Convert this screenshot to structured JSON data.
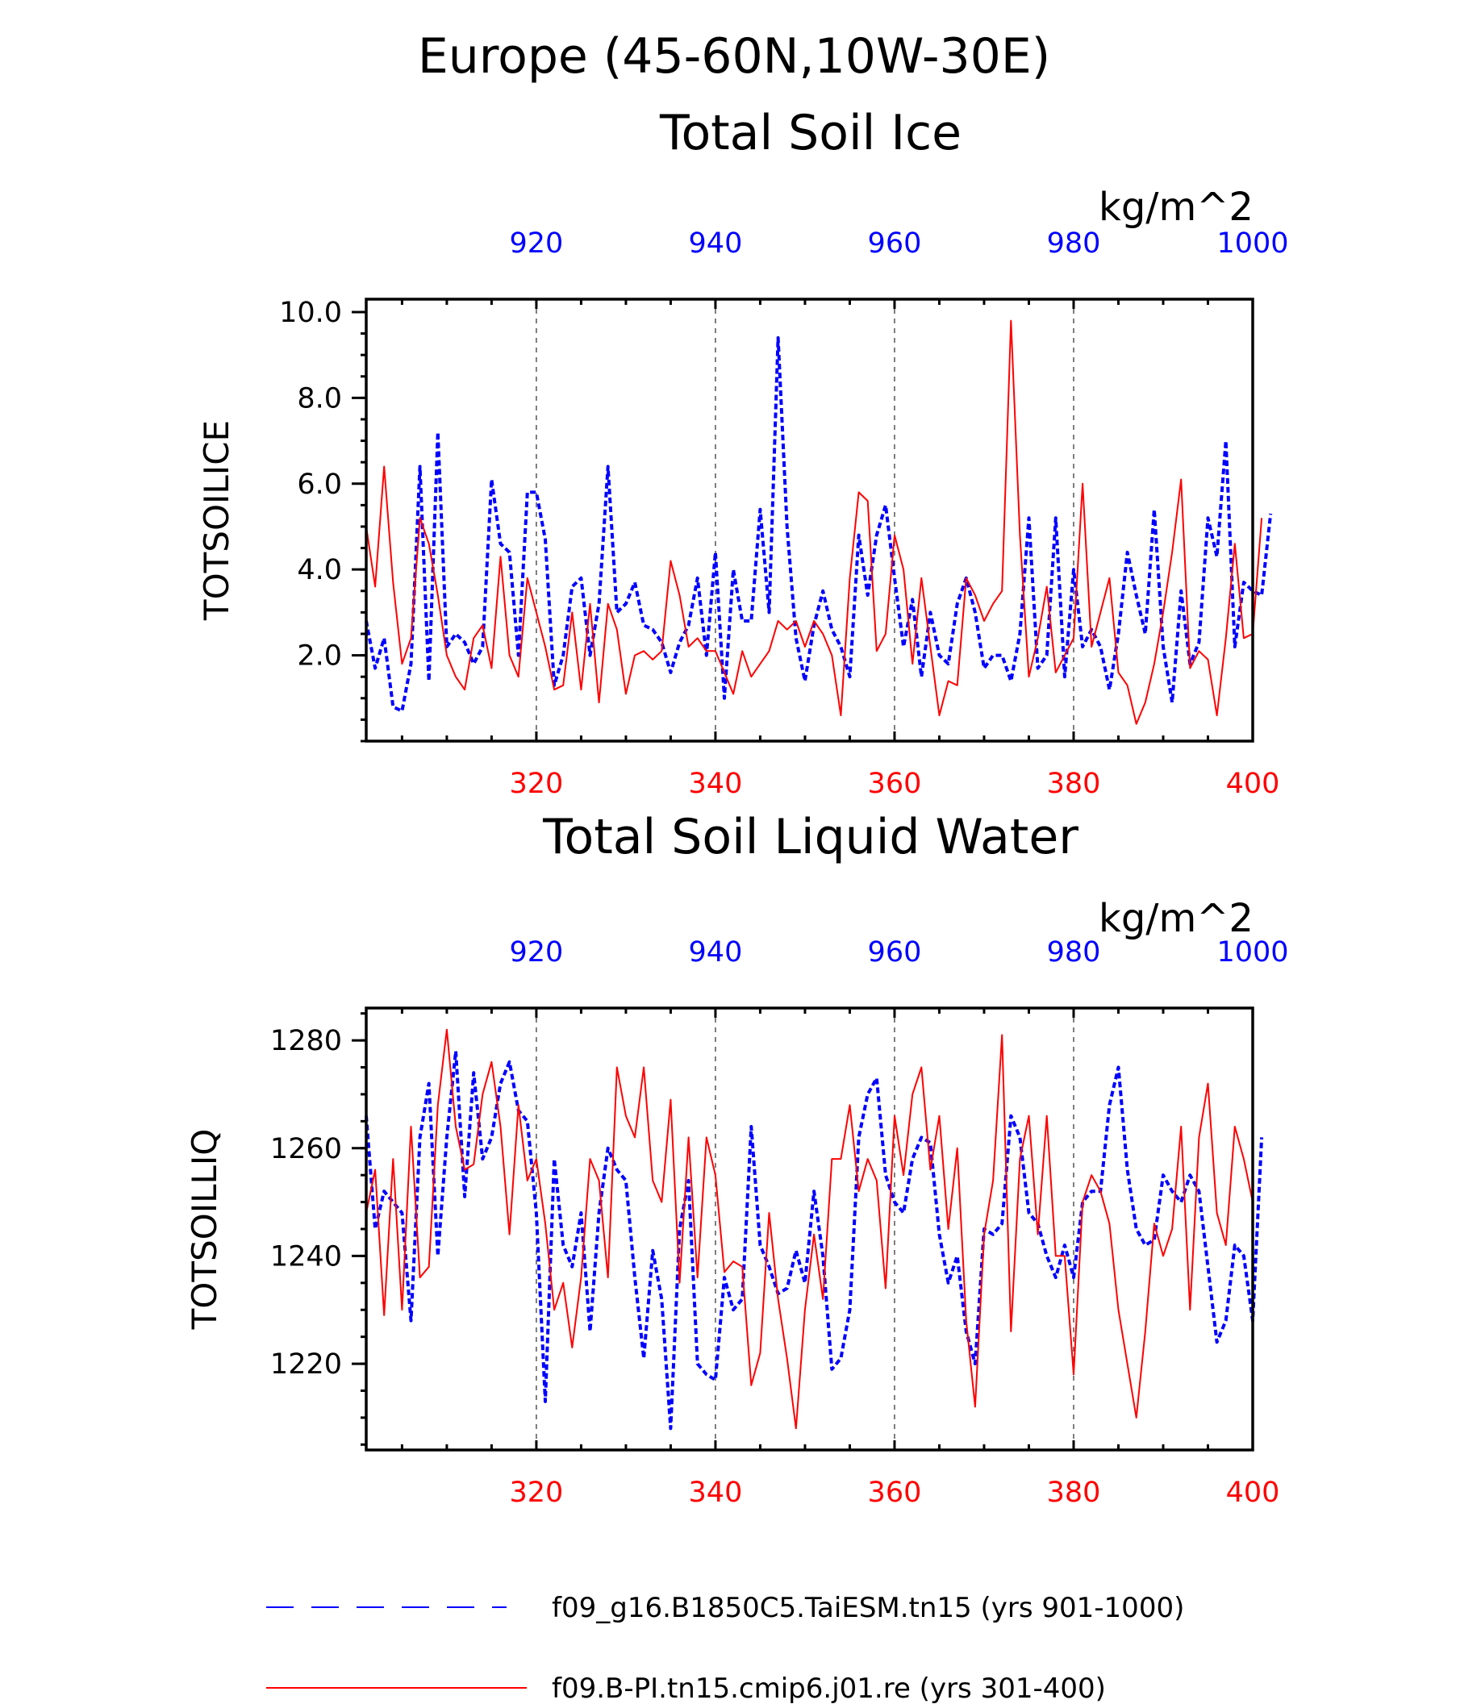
{
  "chart_data": [
    {
      "type": "line",
      "title": "Europe (45-60N,10W-30E)",
      "subtitle": "Total Soil Ice",
      "units": "kg/m^2",
      "ylabel": "TOTSOILICE",
      "ylim": [
        0,
        10.3
      ],
      "yticks": [
        "2.0",
        "4.0",
        "6.0",
        "8.0",
        "10.0"
      ],
      "x_bottom": {
        "range": [
          301,
          400
        ],
        "ticks": [
          "320",
          "340",
          "360",
          "380",
          "400"
        ],
        "color": "#ff0000"
      },
      "x_top": {
        "range": [
          901,
          1000
        ],
        "ticks": [
          "920",
          "940",
          "960",
          "980",
          "1000"
        ],
        "color": "#0000ff"
      },
      "grid": "vertical dashed at major ticks",
      "series": [
        {
          "name": "f09_g16.B1850C5.TaiESM.tn15 (yrs 901-1000)",
          "color": "#0000ff",
          "style": "dashed",
          "axis": "top",
          "values": [
            2.8,
            1.7,
            2.4,
            0.8,
            0.7,
            1.8,
            6.4,
            1.4,
            7.2,
            2.2,
            2.5,
            2.3,
            1.8,
            2.2,
            6.1,
            4.6,
            4.4,
            2.0,
            5.8,
            5.8,
            4.7,
            1.3,
            2.0,
            3.6,
            3.8,
            2.0,
            3.2,
            6.4,
            3.0,
            3.2,
            3.7,
            2.7,
            2.6,
            2.3,
            1.6,
            2.3,
            2.7,
            3.8,
            2.0,
            4.4,
            1.0,
            4.0,
            2.8,
            2.8,
            5.4,
            3.0,
            9.4,
            5.0,
            2.4,
            1.4,
            2.7,
            3.5,
            2.6,
            2.2,
            1.5,
            4.8,
            3.4,
            4.8,
            5.5,
            3.8,
            2.2,
            3.3,
            1.5,
            3.0,
            2.0,
            1.8,
            3.2,
            3.8,
            3.0,
            1.7,
            2.0,
            2.0,
            1.4,
            2.5,
            5.2,
            1.7,
            2.0,
            5.2,
            1.5,
            4.0,
            2.2,
            2.6,
            2.2,
            1.2,
            2.5,
            4.4,
            3.4,
            2.5,
            5.4,
            2.2,
            0.9,
            3.5,
            1.8,
            2.3,
            5.2,
            4.3,
            7.0,
            2.2,
            3.7,
            3.5,
            3.4,
            5.3
          ]
        },
        {
          "name": "f09.B-PI.tn15.cmip6.j01.re (yrs 301-400)",
          "color": "#ff0000",
          "style": "solid",
          "axis": "bottom",
          "values": [
            5.0,
            3.6,
            6.4,
            3.7,
            1.8,
            2.4,
            5.2,
            4.6,
            3.4,
            2.0,
            1.5,
            1.2,
            2.4,
            2.7,
            1.7,
            4.3,
            2.0,
            1.5,
            3.8,
            3.0,
            2.2,
            1.2,
            1.3,
            3.0,
            1.2,
            3.2,
            0.9,
            3.2,
            2.6,
            1.1,
            2.0,
            2.1,
            1.9,
            2.1,
            4.2,
            3.4,
            2.2,
            2.4,
            2.1,
            2.1,
            1.6,
            1.1,
            2.1,
            1.5,
            1.8,
            2.1,
            2.8,
            2.6,
            2.8,
            2.2,
            2.8,
            2.5,
            2.0,
            0.6,
            3.8,
            5.8,
            5.6,
            2.1,
            2.5,
            4.8,
            4.0,
            1.8,
            3.8,
            2.2,
            0.6,
            1.4,
            1.3,
            3.8,
            3.4,
            2.8,
            3.2,
            3.5,
            9.8,
            4.8,
            1.5,
            2.4,
            3.6,
            1.6,
            2.0,
            2.4,
            6.0,
            2.2,
            3.0,
            3.8,
            1.6,
            1.3,
            0.4,
            0.9,
            1.8,
            3.0,
            4.4,
            6.1,
            1.7,
            2.1,
            1.9,
            0.6,
            2.4,
            4.6,
            2.4,
            2.5,
            5.2
          ]
        }
      ]
    },
    {
      "type": "line",
      "title": "Total Soil Liquid Water",
      "units": "kg/m^2",
      "ylabel": "TOTSOILLIQ",
      "ylim": [
        1204,
        1286
      ],
      "yticks": [
        "1220",
        "1240",
        "1260",
        "1280"
      ],
      "x_bottom": {
        "range": [
          301,
          400
        ],
        "ticks": [
          "320",
          "340",
          "360",
          "380",
          "400"
        ],
        "color": "#ff0000"
      },
      "x_top": {
        "range": [
          901,
          1000
        ],
        "ticks": [
          "920",
          "940",
          "960",
          "980",
          "1000"
        ],
        "color": "#0000ff"
      },
      "grid": "vertical dashed at major ticks",
      "series": [
        {
          "name": "f09_g16.B1850C5.TaiESM.tn15 (yrs 901-1000)",
          "color": "#0000ff",
          "style": "dashed",
          "axis": "top",
          "values": [
            1266,
            1245,
            1252,
            1250,
            1248,
            1228,
            1262,
            1272,
            1240,
            1262,
            1278,
            1251,
            1274,
            1258,
            1262,
            1272,
            1276,
            1267,
            1265,
            1248,
            1213,
            1258,
            1242,
            1238,
            1248,
            1226,
            1248,
            1260,
            1256,
            1254,
            1236,
            1221,
            1241,
            1232,
            1208,
            1245,
            1254,
            1220,
            1218,
            1217,
            1236,
            1230,
            1232,
            1264,
            1242,
            1238,
            1233,
            1234,
            1241,
            1235,
            1252,
            1240,
            1219,
            1221,
            1230,
            1262,
            1270,
            1273,
            1255,
            1250,
            1248,
            1258,
            1262,
            1261,
            1244,
            1235,
            1240,
            1226,
            1220,
            1245,
            1244,
            1246,
            1266,
            1262,
            1248,
            1246,
            1240,
            1236,
            1242,
            1236,
            1250,
            1252,
            1252,
            1268,
            1275,
            1256,
            1245,
            1242,
            1243,
            1255,
            1252,
            1250,
            1255,
            1252,
            1238,
            1224,
            1228,
            1242,
            1240,
            1228,
            1262
          ]
        },
        {
          "name": "f09.B-PI.tn15.cmip6.j01.re (yrs 301-400)",
          "color": "#ff0000",
          "style": "solid",
          "axis": "bottom",
          "values": [
            1248,
            1256,
            1229,
            1258,
            1230,
            1264,
            1236,
            1238,
            1268,
            1282,
            1264,
            1256,
            1257,
            1270,
            1276,
            1264,
            1244,
            1268,
            1254,
            1258,
            1246,
            1230,
            1235,
            1223,
            1236,
            1258,
            1254,
            1236,
            1275,
            1266,
            1262,
            1275,
            1254,
            1250,
            1269,
            1235,
            1262,
            1236,
            1262,
            1255,
            1237,
            1239,
            1238,
            1216,
            1222,
            1248,
            1232,
            1221,
            1208,
            1230,
            1244,
            1232,
            1258,
            1258,
            1268,
            1252,
            1258,
            1254,
            1234,
            1266,
            1255,
            1270,
            1275,
            1256,
            1266,
            1245,
            1260,
            1228,
            1212,
            1244,
            1254,
            1281,
            1226,
            1258,
            1266,
            1244,
            1266,
            1240,
            1240,
            1218,
            1250,
            1255,
            1252,
            1246,
            1230,
            1220,
            1210,
            1226,
            1246,
            1240,
            1245,
            1264,
            1230,
            1262,
            1272,
            1248,
            1242,
            1264,
            1258,
            1250
          ]
        }
      ]
    }
  ],
  "legend": [
    {
      "label": "f09_g16.B1850C5.TaiESM.tn15 (yrs 901-1000)",
      "color": "#0000ff",
      "style": "dashed"
    },
    {
      "label": "f09.B-PI.tn15.cmip6.j01.re (yrs 301-400)",
      "color": "#ff0000",
      "style": "solid"
    }
  ]
}
